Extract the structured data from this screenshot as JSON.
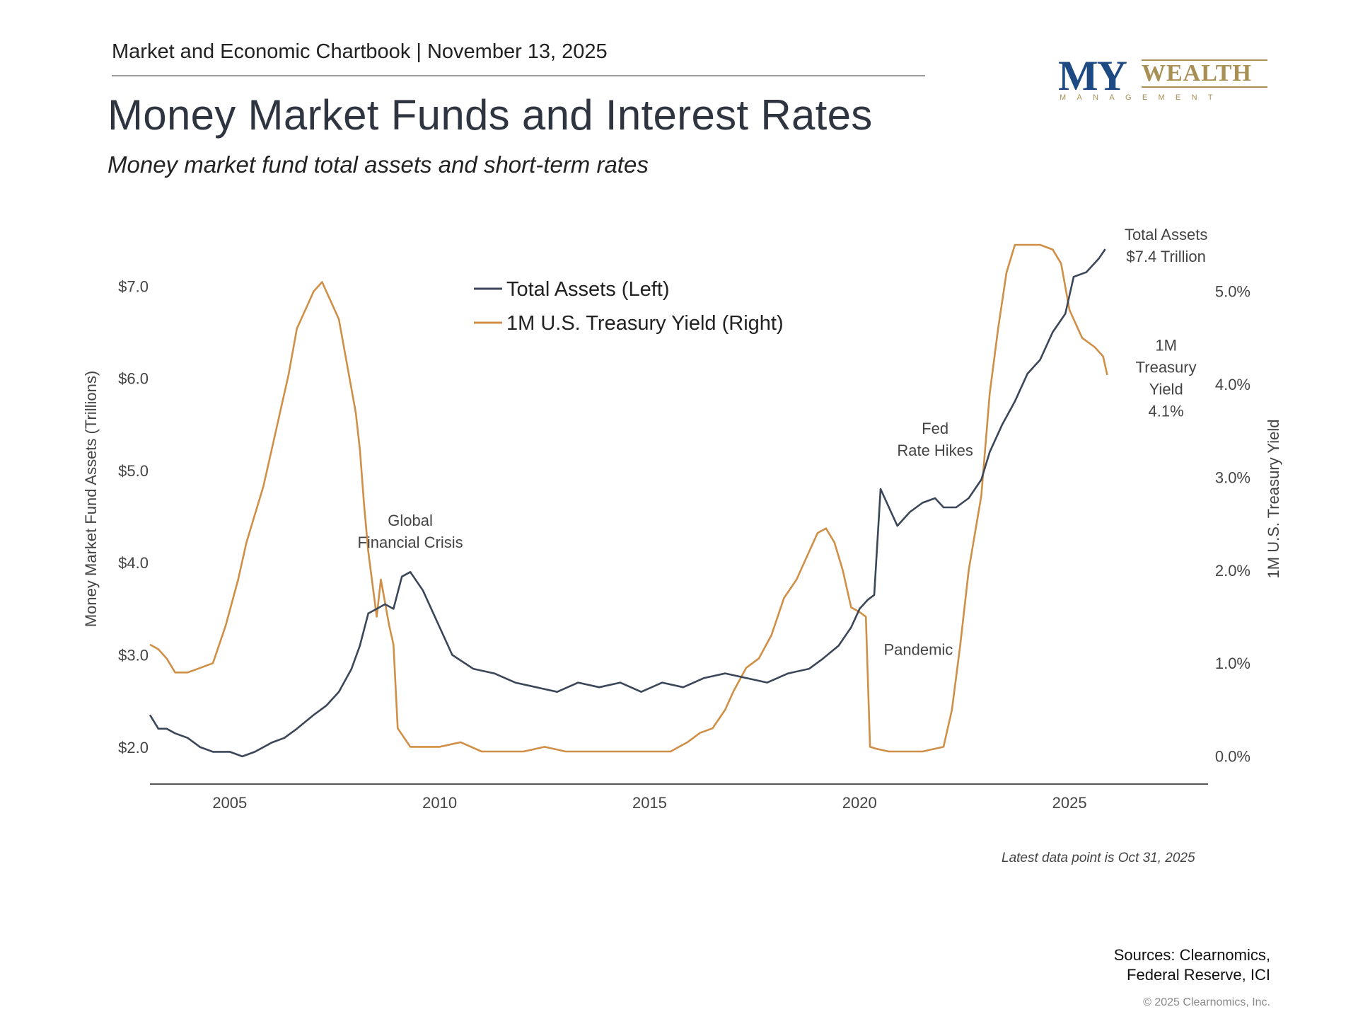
{
  "header": {
    "chartbook": "Market and Economic Chartbook | November 13, 2025",
    "title": "Money Market Funds and Interest Rates",
    "subtitle": "Money market fund total assets and short-term rates"
  },
  "logo": {
    "my": "MY",
    "wealth": "WEALTH",
    "management": "MANAGEMENT"
  },
  "colors": {
    "assets": "#3b4758",
    "yield": "#d08f46",
    "axis": "#555555",
    "text": "#444444"
  },
  "footer": {
    "sources_line1": "Sources: Clearnomics,",
    "sources_line2": "Federal Reserve, ICI",
    "copyright": "© 2025 Clearnomics, Inc.",
    "latest_note": "Latest data point is Oct 31, 2025"
  },
  "chart_data": {
    "type": "line",
    "ylabel": "Money Market Fund Assets (Trillions)",
    "y2label": "1M U.S. Treasury Yield",
    "xlim": [
      2003.1,
      2028.3
    ],
    "ylim": [
      1.6,
      7.8
    ],
    "y2lim": [
      -0.3,
      5.85
    ],
    "x_ticks": [
      "2005",
      "2010",
      "2015",
      "2020",
      "2025"
    ],
    "x_tick_values": [
      2005,
      2010,
      2015,
      2020,
      2025
    ],
    "y_ticks": [
      "$2.0",
      "$3.0",
      "$4.0",
      "$5.0",
      "$6.0",
      "$7.0"
    ],
    "y_tick_values": [
      2.0,
      3.0,
      4.0,
      5.0,
      6.0,
      7.0
    ],
    "y2_ticks": [
      "0.0%",
      "1.0%",
      "2.0%",
      "3.0%",
      "4.0%",
      "5.0%"
    ],
    "y2_tick_values": [
      0,
      1,
      2,
      3,
      4,
      5
    ],
    "legend": [
      {
        "name": "Total Assets (Left)",
        "series": 0
      },
      {
        "name": "1M U.S. Treasury Yield (Right)",
        "series": 1
      }
    ],
    "annotations": [
      {
        "lines": [
          "Global",
          "Financial Crisis"
        ],
        "x": 2009.3,
        "y": 4.4
      },
      {
        "lines": [
          "Fed",
          "Rate Hikes"
        ],
        "x": 2021.8,
        "y": 5.4
      },
      {
        "lines": [
          "Pandemic"
        ],
        "x": 2021.4,
        "y": 3.0
      },
      {
        "lines": [
          "Total Assets",
          "$7.4 Trillion"
        ],
        "x": 2027.3,
        "y": 7.5
      },
      {
        "lines": [
          "1M",
          "Treasury",
          "Yield",
          "4.1%"
        ],
        "x": 2027.3,
        "y": 6.3
      }
    ],
    "series": [
      {
        "name": "Total Assets (Left)",
        "axis": "left",
        "x": [
          2003.1,
          2003.3,
          2003.5,
          2003.7,
          2004.0,
          2004.3,
          2004.6,
          2005.0,
          2005.3,
          2005.6,
          2006.0,
          2006.3,
          2006.6,
          2007.0,
          2007.3,
          2007.6,
          2007.9,
          2008.1,
          2008.3,
          2008.5,
          2008.7,
          2008.9,
          2009.1,
          2009.3,
          2009.6,
          2009.9,
          2010.3,
          2010.8,
          2011.3,
          2011.8,
          2012.3,
          2012.8,
          2013.3,
          2013.8,
          2014.3,
          2014.8,
          2015.3,
          2015.8,
          2016.3,
          2016.8,
          2017.3,
          2017.8,
          2018.3,
          2018.8,
          2019.1,
          2019.5,
          2019.8,
          2020.0,
          2020.2,
          2020.35,
          2020.5,
          2020.7,
          2020.9,
          2021.2,
          2021.5,
          2021.8,
          2022.0,
          2022.3,
          2022.6,
          2022.9,
          2023.1,
          2023.4,
          2023.7,
          2024.0,
          2024.3,
          2024.6,
          2024.9,
          2025.1,
          2025.4,
          2025.7,
          2025.85
        ],
        "values": [
          2.35,
          2.2,
          2.2,
          2.15,
          2.1,
          2.0,
          1.95,
          1.95,
          1.9,
          1.95,
          2.05,
          2.1,
          2.2,
          2.35,
          2.45,
          2.6,
          2.85,
          3.1,
          3.45,
          3.5,
          3.55,
          3.5,
          3.85,
          3.9,
          3.7,
          3.4,
          3.0,
          2.85,
          2.8,
          2.7,
          2.65,
          2.6,
          2.7,
          2.65,
          2.7,
          2.6,
          2.7,
          2.65,
          2.75,
          2.8,
          2.75,
          2.7,
          2.8,
          2.85,
          2.95,
          3.1,
          3.3,
          3.5,
          3.6,
          3.65,
          4.8,
          4.6,
          4.4,
          4.55,
          4.65,
          4.7,
          4.6,
          4.6,
          4.7,
          4.9,
          5.2,
          5.5,
          5.75,
          6.05,
          6.2,
          6.5,
          6.7,
          7.1,
          7.15,
          7.3,
          7.4
        ]
      },
      {
        "name": "1M U.S. Treasury Yield (Right)",
        "axis": "right",
        "x": [
          2003.1,
          2003.3,
          2003.5,
          2003.7,
          2004.0,
          2004.3,
          2004.6,
          2004.9,
          2005.2,
          2005.4,
          2005.6,
          2005.8,
          2006.0,
          2006.2,
          2006.4,
          2006.6,
          2006.8,
          2007.0,
          2007.2,
          2007.4,
          2007.6,
          2007.8,
          2008.0,
          2008.1,
          2008.2,
          2008.3,
          2008.5,
          2008.6,
          2008.8,
          2008.9,
          2009.0,
          2009.3,
          2009.6,
          2010.0,
          2010.5,
          2011.0,
          2011.5,
          2012.0,
          2012.5,
          2013.0,
          2013.5,
          2014.0,
          2014.5,
          2015.0,
          2015.5,
          2015.9,
          2016.2,
          2016.5,
          2016.8,
          2017.0,
          2017.3,
          2017.6,
          2017.9,
          2018.2,
          2018.5,
          2018.8,
          2019.0,
          2019.2,
          2019.4,
          2019.6,
          2019.8,
          2020.0,
          2020.15,
          2020.25,
          2020.4,
          2020.7,
          2021.0,
          2021.5,
          2022.0,
          2022.2,
          2022.4,
          2022.6,
          2022.9,
          2023.1,
          2023.3,
          2023.5,
          2023.7,
          2024.0,
          2024.3,
          2024.6,
          2024.8,
          2025.0,
          2025.3,
          2025.6,
          2025.8,
          2025.9
        ],
        "values": [
          1.2,
          1.15,
          1.05,
          0.9,
          0.9,
          0.95,
          1.0,
          1.4,
          1.9,
          2.3,
          2.6,
          2.9,
          3.3,
          3.7,
          4.1,
          4.6,
          4.8,
          5.0,
          5.1,
          4.9,
          4.7,
          4.2,
          3.7,
          3.3,
          2.7,
          2.2,
          1.5,
          1.9,
          1.4,
          1.2,
          0.3,
          0.1,
          0.1,
          0.1,
          0.15,
          0.05,
          0.05,
          0.05,
          0.1,
          0.05,
          0.05,
          0.05,
          0.05,
          0.05,
          0.05,
          0.15,
          0.25,
          0.3,
          0.5,
          0.7,
          0.95,
          1.05,
          1.3,
          1.7,
          1.9,
          2.2,
          2.4,
          2.45,
          2.3,
          2.0,
          1.6,
          1.55,
          1.5,
          0.1,
          0.08,
          0.05,
          0.05,
          0.05,
          0.1,
          0.5,
          1.2,
          2.0,
          2.8,
          3.9,
          4.6,
          5.2,
          5.5,
          5.5,
          5.5,
          5.45,
          5.3,
          4.8,
          4.5,
          4.4,
          4.3,
          4.1
        ]
      }
    ]
  }
}
